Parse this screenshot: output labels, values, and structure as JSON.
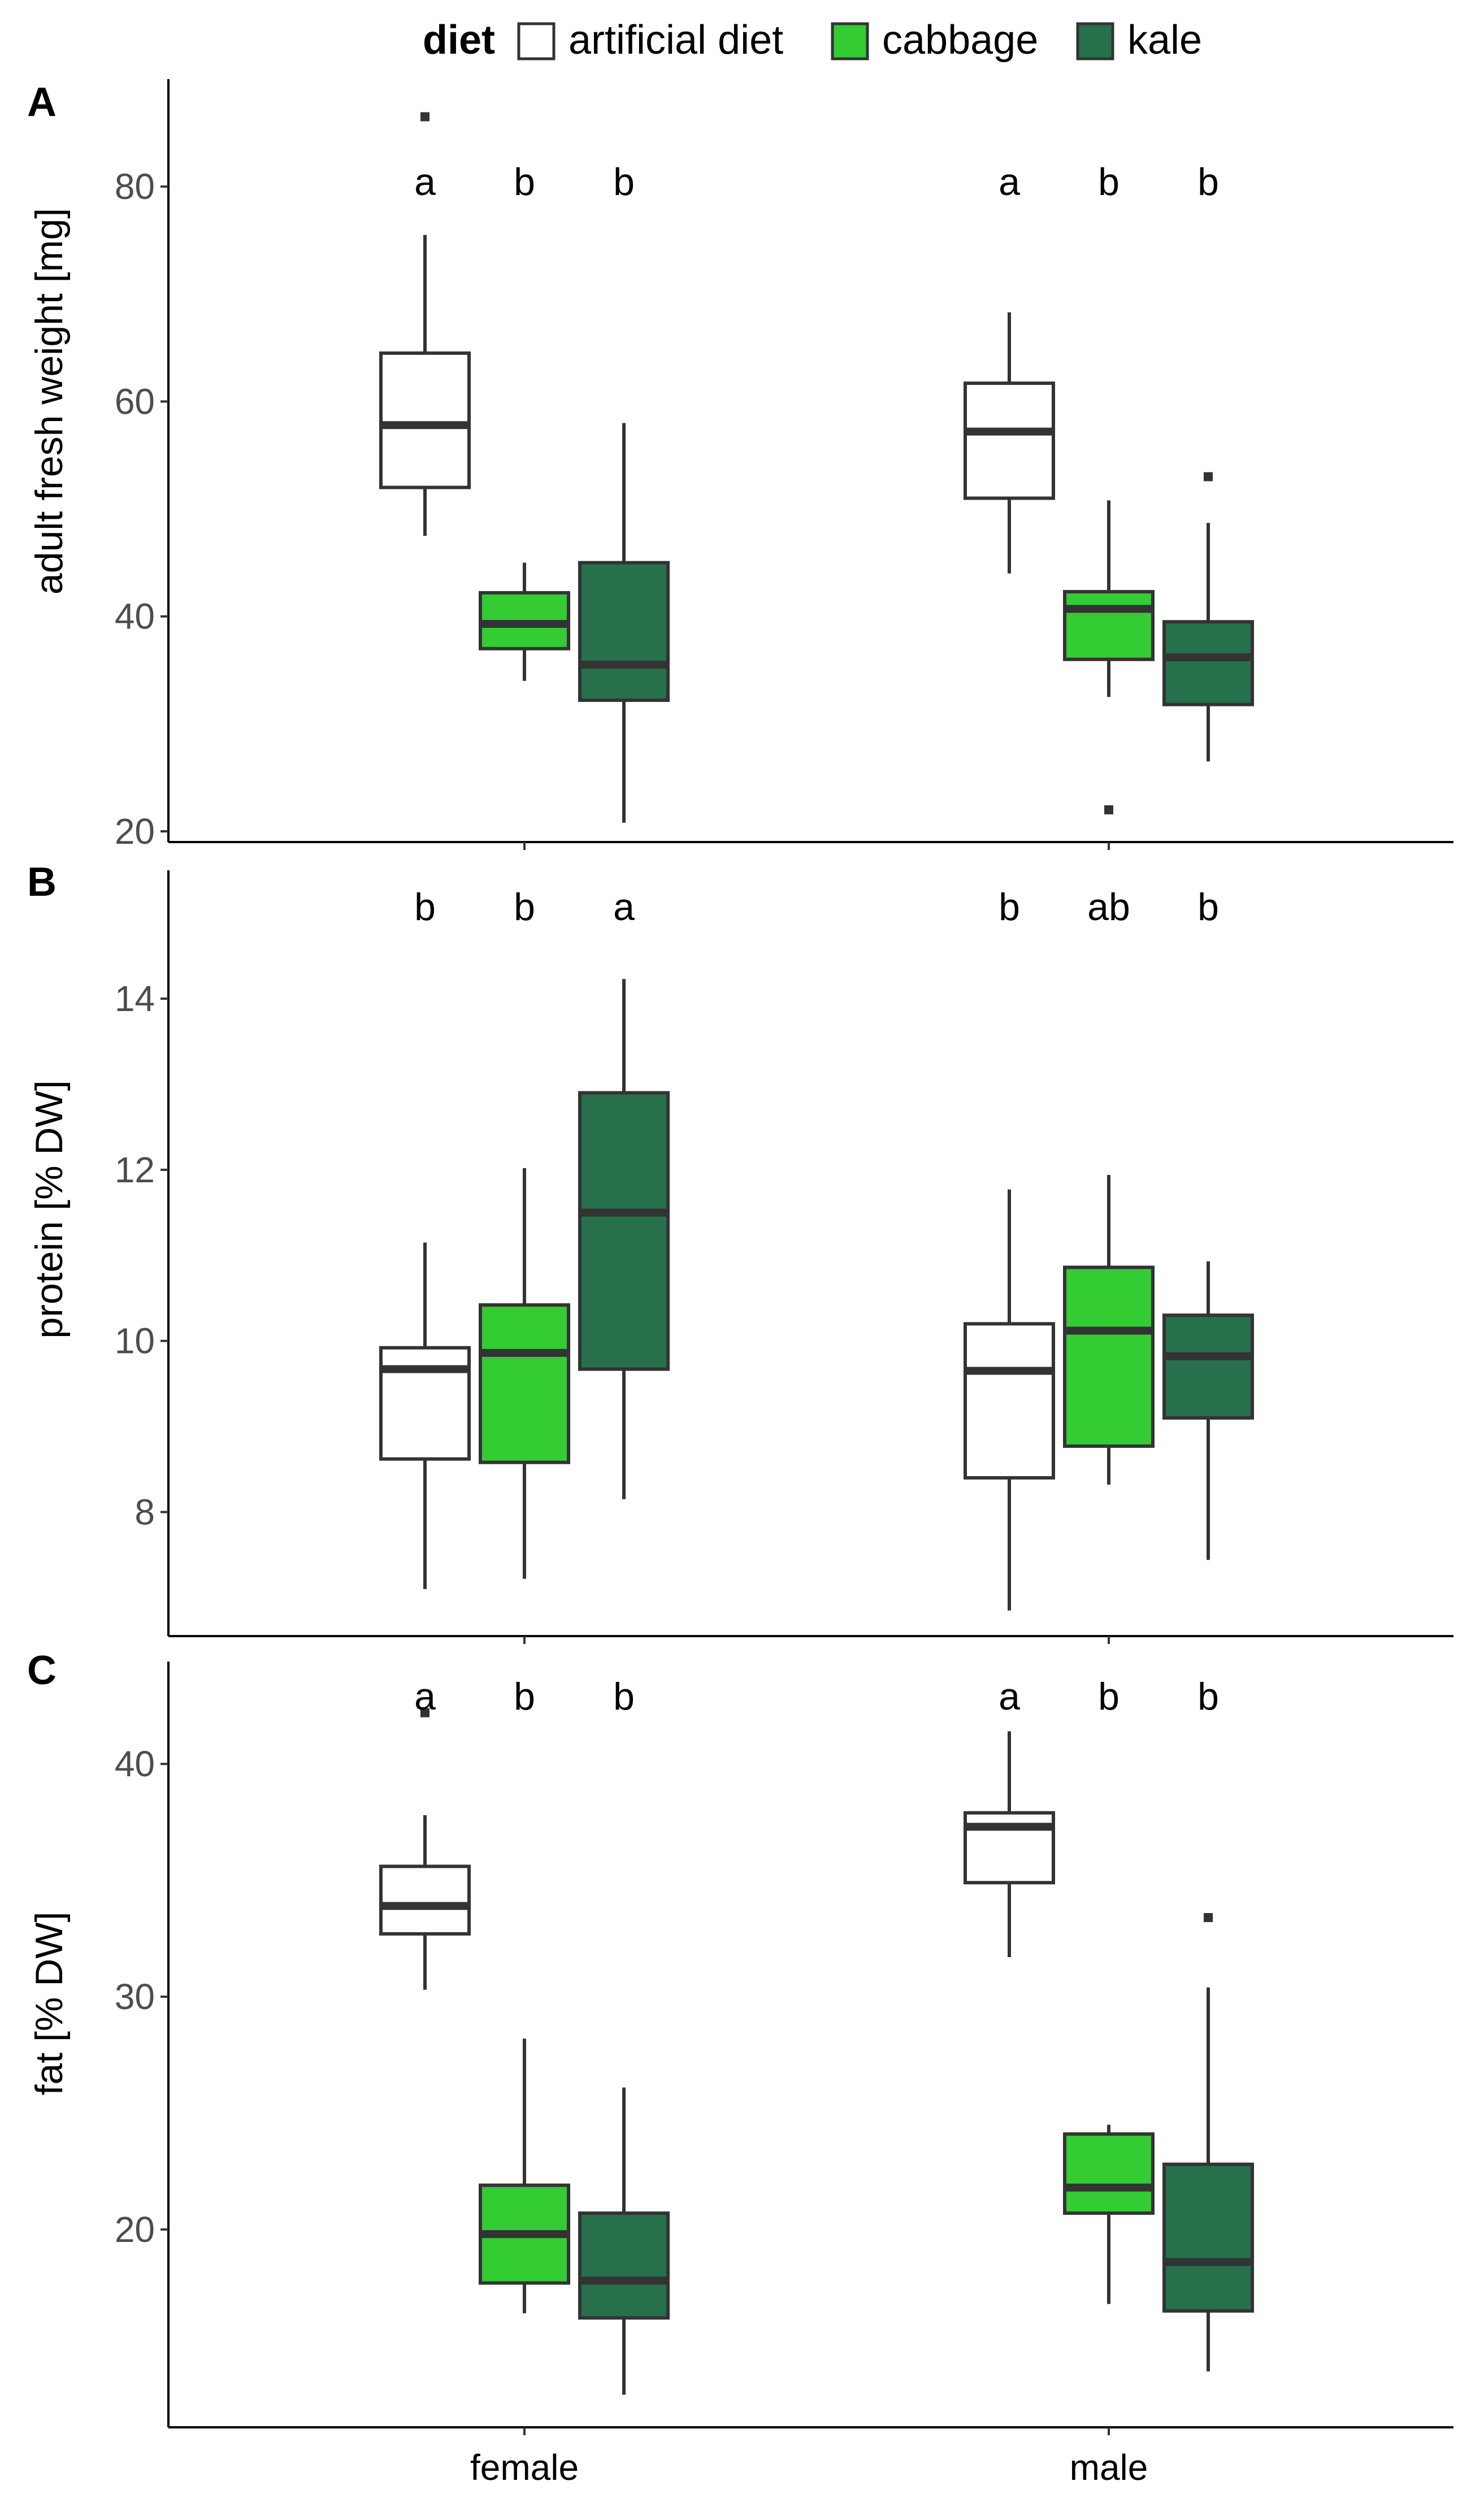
{
  "legend": {
    "title": "diet",
    "items": [
      {
        "label": "artificial diet",
        "color": "#ffffff"
      },
      {
        "label": "cabbage",
        "color": "#33cc33"
      },
      {
        "label": "kale",
        "color": "#26704c"
      }
    ]
  },
  "x_categories": [
    "female",
    "male"
  ],
  "chart_data": [
    {
      "type": "box",
      "panel": "A",
      "ylabel": "adult fresh weight [mg]",
      "ylim": [
        19,
        90
      ],
      "yticks": [
        20,
        40,
        60,
        80
      ],
      "categories": [
        "female",
        "male"
      ],
      "series": [
        {
          "name": "artificial diet",
          "boxes": [
            {
              "group": "female",
              "min": 47.5,
              "q1": 52,
              "median": 57.8,
              "q3": 64.5,
              "max": 75.5,
              "outliers": [
                86.5
              ],
              "letter": "a"
            },
            {
              "group": "male",
              "min": 44,
              "q1": 51,
              "median": 57.2,
              "q3": 61.7,
              "max": 68.3,
              "outliers": [],
              "letter": "a"
            }
          ]
        },
        {
          "name": "cabbage",
          "boxes": [
            {
              "group": "female",
              "min": 34,
              "q1": 37,
              "median": 39.3,
              "q3": 42.2,
              "max": 45,
              "outliers": [],
              "letter": "b"
            },
            {
              "group": "male",
              "min": 32.5,
              "q1": 36,
              "median": 40.7,
              "q3": 42.3,
              "max": 50.8,
              "outliers": [
                22
              ],
              "letter": "b"
            }
          ]
        },
        {
          "name": "kale",
          "boxes": [
            {
              "group": "female",
              "min": 20.8,
              "q1": 32.2,
              "median": 35.5,
              "q3": 45,
              "max": 58,
              "outliers": [],
              "letter": "b"
            },
            {
              "group": "male",
              "min": 26.5,
              "q1": 31.8,
              "median": 36.2,
              "q3": 39.5,
              "max": 48.7,
              "outliers": [
                53
              ],
              "letter": "b"
            }
          ]
        }
      ]
    },
    {
      "type": "box",
      "panel": "B",
      "ylabel": "protein [% DW]",
      "ylim": [
        6.55,
        15.5
      ],
      "yticks": [
        8,
        10,
        12,
        14
      ],
      "categories": [
        "female",
        "male"
      ],
      "series": [
        {
          "name": "artificial diet",
          "boxes": [
            {
              "group": "female",
              "min": 7.1,
              "q1": 8.62,
              "median": 9.67,
              "q3": 9.92,
              "max": 11.15,
              "outliers": [],
              "letter": "b"
            },
            {
              "group": "male",
              "min": 6.85,
              "q1": 8.4,
              "median": 9.65,
              "q3": 10.2,
              "max": 11.77,
              "outliers": [],
              "letter": "b"
            }
          ]
        },
        {
          "name": "cabbage",
          "boxes": [
            {
              "group": "female",
              "min": 7.22,
              "q1": 8.58,
              "median": 9.86,
              "q3": 10.42,
              "max": 12.02,
              "outliers": [],
              "letter": "b"
            },
            {
              "group": "male",
              "min": 8.32,
              "q1": 8.77,
              "median": 10.12,
              "q3": 10.86,
              "max": 11.94,
              "outliers": [],
              "letter": "ab"
            }
          ]
        },
        {
          "name": "kale",
          "boxes": [
            {
              "group": "female",
              "min": 8.15,
              "q1": 9.67,
              "median": 11.5,
              "q3": 12.9,
              "max": 14.23,
              "outliers": [],
              "letter": "a"
            },
            {
              "group": "male",
              "min": 7.44,
              "q1": 9.1,
              "median": 9.82,
              "q3": 10.3,
              "max": 10.93,
              "outliers": [],
              "letter": "b"
            }
          ]
        }
      ]
    },
    {
      "type": "box",
      "panel": "C",
      "ylabel": "fat [% DW]",
      "ylim": [
        11.5,
        44.4
      ],
      "yticks": [
        20,
        30,
        40
      ],
      "categories": [
        "female",
        "male"
      ],
      "series": [
        {
          "name": "artificial diet",
          "boxes": [
            {
              "group": "female",
              "min": 30.3,
              "q1": 32.7,
              "median": 33.9,
              "q3": 35.6,
              "max": 37.8,
              "outliers": [
                42.2
              ],
              "letter": "a"
            },
            {
              "group": "male",
              "min": 31.7,
              "q1": 34.9,
              "median": 37.3,
              "q3": 37.9,
              "max": 41.4,
              "outliers": [],
              "letter": "a"
            }
          ]
        },
        {
          "name": "cabbage",
          "boxes": [
            {
              "group": "female",
              "min": 16.4,
              "q1": 17.7,
              "median": 19.8,
              "q3": 21.9,
              "max": 28.2,
              "outliers": [],
              "letter": "b"
            },
            {
              "group": "male",
              "min": 16.8,
              "q1": 20.7,
              "median": 21.8,
              "q3": 24.1,
              "max": 24.5,
              "outliers": [],
              "letter": "b"
            }
          ]
        },
        {
          "name": "kale",
          "boxes": [
            {
              "group": "female",
              "min": 12.9,
              "q1": 16.2,
              "median": 17.8,
              "q3": 20.7,
              "max": 26.1,
              "outliers": [],
              "letter": "b"
            },
            {
              "group": "male",
              "min": 13.9,
              "q1": 16.5,
              "median": 18.6,
              "q3": 22.8,
              "max": 30.4,
              "outliers": [
                33.4
              ],
              "letter": "b"
            }
          ]
        }
      ]
    }
  ]
}
